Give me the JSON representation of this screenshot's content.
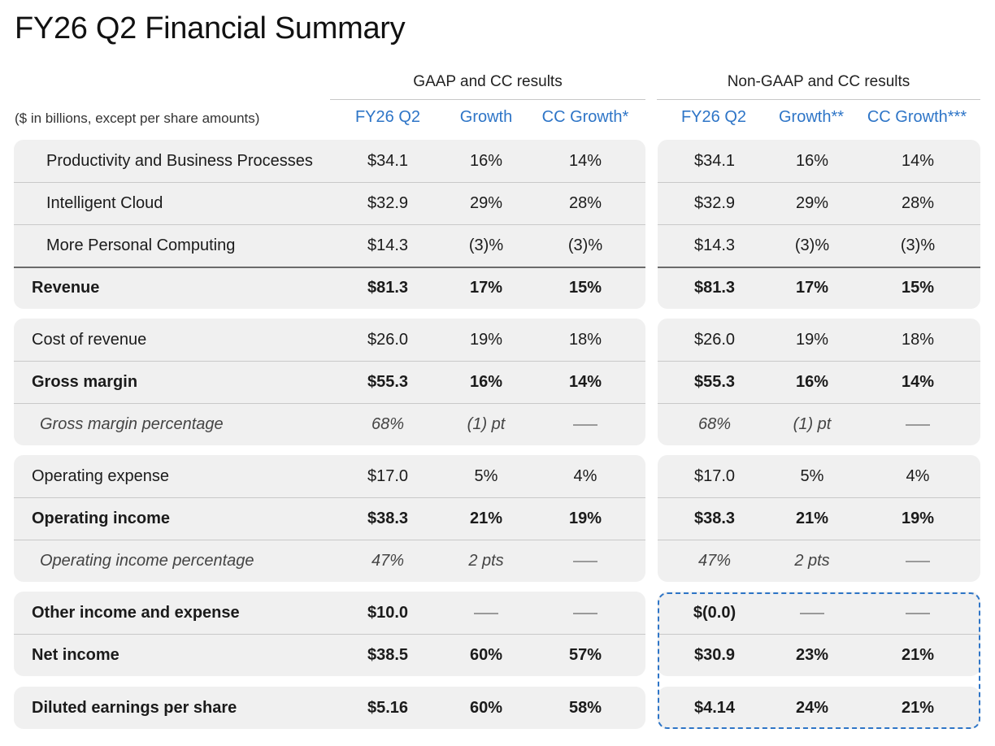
{
  "title": "FY26 Q2 Financial Summary",
  "units_note": "($ in billions, except per share amounts)",
  "gaap": {
    "group_title": "GAAP and CC results",
    "columns": [
      "FY26 Q2",
      "Growth",
      "CC Growth*"
    ]
  },
  "nongaap": {
    "group_title": "Non-GAAP and CC results",
    "columns": [
      "FY26 Q2",
      "Growth**",
      "CC Growth***"
    ]
  },
  "rows": [
    {
      "label": "Productivity and Business Processes",
      "gaap": [
        "$34.1",
        "16%",
        "14%"
      ],
      "nongaap": [
        "$34.1",
        "16%",
        "14%"
      ]
    },
    {
      "label": "Intelligent Cloud",
      "gaap": [
        "$32.9",
        "29%",
        "28%"
      ],
      "nongaap": [
        "$32.9",
        "29%",
        "28%"
      ]
    },
    {
      "label": "More Personal Computing",
      "gaap": [
        "$14.3",
        "(3)%",
        "(3)%"
      ],
      "nongaap": [
        "$14.3",
        "(3)%",
        "(3)%"
      ]
    },
    {
      "label": "Revenue",
      "gaap": [
        "$81.3",
        "17%",
        "15%"
      ],
      "nongaap": [
        "$81.3",
        "17%",
        "15%"
      ]
    },
    {
      "label": "Cost of revenue",
      "gaap": [
        "$26.0",
        "19%",
        "18%"
      ],
      "nongaap": [
        "$26.0",
        "19%",
        "18%"
      ]
    },
    {
      "label": "Gross margin",
      "gaap": [
        "$55.3",
        "16%",
        "14%"
      ],
      "nongaap": [
        "$55.3",
        "16%",
        "14%"
      ]
    },
    {
      "label": "Gross margin percentage",
      "gaap": [
        "68%",
        "(1) pt",
        ""
      ],
      "nongaap": [
        "68%",
        "(1) pt",
        ""
      ]
    },
    {
      "label": "Operating expense",
      "gaap": [
        "$17.0",
        "5%",
        "4%"
      ],
      "nongaap": [
        "$17.0",
        "5%",
        "4%"
      ]
    },
    {
      "label": "Operating income",
      "gaap": [
        "$38.3",
        "21%",
        "19%"
      ],
      "nongaap": [
        "$38.3",
        "21%",
        "19%"
      ]
    },
    {
      "label": "Operating income percentage",
      "gaap": [
        "47%",
        "2 pts",
        ""
      ],
      "nongaap": [
        "47%",
        "2 pts",
        ""
      ]
    },
    {
      "label": "Other income and expense",
      "gaap": [
        "$10.0",
        "",
        ""
      ],
      "nongaap": [
        "$(0.0)",
        "",
        ""
      ]
    },
    {
      "label": "Net income",
      "gaap": [
        "$38.5",
        "60%",
        "57%"
      ],
      "nongaap": [
        "$30.9",
        "23%",
        "21%"
      ]
    },
    {
      "label": "Diluted earnings per share",
      "gaap": [
        "$5.16",
        "60%",
        "58%"
      ],
      "nongaap": [
        "$4.14",
        "24%",
        "21%"
      ]
    }
  ]
}
